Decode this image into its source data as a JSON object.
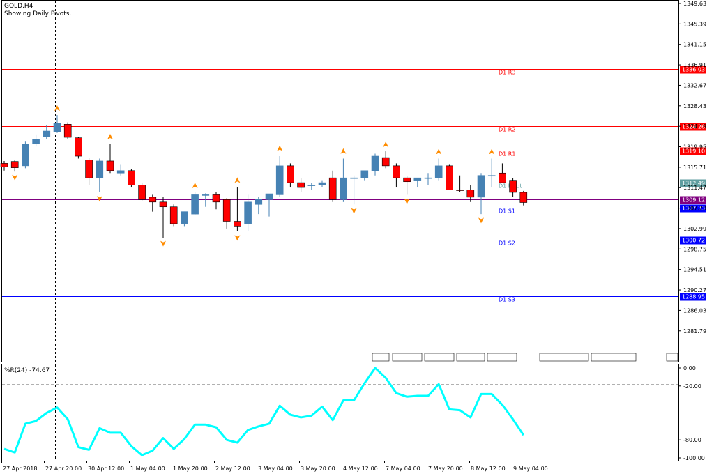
{
  "header": {
    "symbol": "GOLD,H4",
    "subtitle": "Showing Daily Pivots."
  },
  "indicator": {
    "label": "%R(24) -74.67"
  },
  "colors": {
    "bull": "#4682b4",
    "bear": "#ff0000",
    "resistance": "#ff0000",
    "support": "#0000ff",
    "pivot": "#5f9ea0",
    "current_price": "#800080",
    "wpr_line": "#00ffff",
    "arrow": "#ff8c00"
  },
  "chart_data": [
    {
      "type": "candlestick",
      "price_axis": {
        "min": 1279.3,
        "max": 1349.63,
        "ticks": [
          "1349.63",
          "1345.39",
          "1341.15",
          "1336.91",
          "1332.67",
          "1328.43",
          "1324.19",
          "1319.95",
          "1315.71",
          "1311.47",
          "1307.23",
          "1302.99",
          "1298.75",
          "1294.51",
          "1290.27",
          "1286.03",
          "1281.79"
        ]
      },
      "time_axis_labels": [
        "27 Apr 2018",
        "27 Apr 20:00",
        "30 Apr 12:00",
        "1 May 04:00",
        "1 May 20:00",
        "2 May 12:00",
        "3 May 04:00",
        "3 May 20:00",
        "4 May 12:00",
        "7 May 04:00",
        "7 May 20:00",
        "8 May 12:00",
        "9 May 04:00"
      ],
      "pivot_levels": [
        {
          "name": "D1 R3",
          "value": "1336.03",
          "kind": "resistance"
        },
        {
          "name": "D1 R2",
          "value": "1324.26",
          "kind": "resistance"
        },
        {
          "name": "D1 R1",
          "value": "1319.10",
          "kind": "resistance"
        },
        {
          "name": "D1 Pivot",
          "value": "1312.49",
          "kind": "pivot"
        },
        {
          "name": "",
          "value": "1309.12",
          "kind": "current_price"
        },
        {
          "name": "D1 S1",
          "value": "1307.33",
          "kind": "support"
        },
        {
          "name": "D1 S2",
          "value": "1300.72",
          "kind": "support"
        },
        {
          "name": "D1 S3",
          "value": "1288.95",
          "kind": "support"
        }
      ],
      "candles": [
        {
          "o": 1316.5,
          "h": 1317.0,
          "l": 1315.0,
          "c": 1315.8
        },
        {
          "o": 1316.9,
          "h": 1317.2,
          "l": 1314.8,
          "c": 1315.6
        },
        {
          "o": 1316.0,
          "h": 1321.0,
          "l": 1315.5,
          "c": 1320.5
        },
        {
          "o": 1320.5,
          "h": 1322.5,
          "l": 1320.0,
          "c": 1321.5
        },
        {
          "o": 1322.0,
          "h": 1324.5,
          "l": 1321.5,
          "c": 1323.2
        },
        {
          "o": 1323.0,
          "h": 1326.5,
          "l": 1322.8,
          "c": 1324.8
        },
        {
          "o": 1324.6,
          "h": 1325.0,
          "l": 1321.5,
          "c": 1321.9
        },
        {
          "o": 1321.8,
          "h": 1322.0,
          "l": 1317.5,
          "c": 1318.0
        },
        {
          "o": 1317.2,
          "h": 1317.6,
          "l": 1312.0,
          "c": 1313.5
        },
        {
          "o": 1313.5,
          "h": 1317.5,
          "l": 1310.5,
          "c": 1317.0
        },
        {
          "o": 1317.0,
          "h": 1320.5,
          "l": 1314.5,
          "c": 1315.0
        },
        {
          "o": 1314.5,
          "h": 1316.2,
          "l": 1314.0,
          "c": 1315.0
        },
        {
          "o": 1315.0,
          "h": 1315.3,
          "l": 1311.5,
          "c": 1312.0
        },
        {
          "o": 1312.0,
          "h": 1312.5,
          "l": 1308.8,
          "c": 1309.0
        },
        {
          "o": 1309.5,
          "h": 1310.0,
          "l": 1306.5,
          "c": 1308.5
        },
        {
          "o": 1308.5,
          "h": 1309.5,
          "l": 1301.0,
          "c": 1307.5
        },
        {
          "o": 1307.5,
          "h": 1308.0,
          "l": 1303.5,
          "c": 1304.0
        },
        {
          "o": 1304.0,
          "h": 1306.5,
          "l": 1303.5,
          "c": 1306.5
        },
        {
          "o": 1306.0,
          "h": 1310.5,
          "l": 1305.8,
          "c": 1310.0
        },
        {
          "o": 1310.0,
          "h": 1310.3,
          "l": 1307.5,
          "c": 1310.0
        },
        {
          "o": 1310.0,
          "h": 1310.5,
          "l": 1307.0,
          "c": 1308.5
        },
        {
          "o": 1309.0,
          "h": 1309.3,
          "l": 1303.0,
          "c": 1304.5
        },
        {
          "o": 1304.5,
          "h": 1311.5,
          "l": 1302.5,
          "c": 1303.5
        },
        {
          "o": 1304.0,
          "h": 1310.0,
          "l": 1302.5,
          "c": 1308.5
        },
        {
          "o": 1308.0,
          "h": 1309.5,
          "l": 1306.0,
          "c": 1309.0
        },
        {
          "o": 1309.0,
          "h": 1310.0,
          "l": 1305.5,
          "c": 1310.2
        },
        {
          "o": 1310.0,
          "h": 1318.0,
          "l": 1309.5,
          "c": 1316.0
        },
        {
          "o": 1316.0,
          "h": 1316.5,
          "l": 1311.5,
          "c": 1312.5
        },
        {
          "o": 1312.5,
          "h": 1313.5,
          "l": 1310.5,
          "c": 1311.5
        },
        {
          "o": 1312.0,
          "h": 1312.5,
          "l": 1311.0,
          "c": 1312.0
        },
        {
          "o": 1312.0,
          "h": 1313.0,
          "l": 1311.5,
          "c": 1312.5
        },
        {
          "o": 1313.5,
          "h": 1315.0,
          "l": 1308.5,
          "c": 1309.0
        },
        {
          "o": 1309.0,
          "h": 1317.5,
          "l": 1308.5,
          "c": 1313.5
        },
        {
          "o": 1313.5,
          "h": 1314.0,
          "l": 1308.0,
          "c": 1313.5
        },
        {
          "o": 1313.5,
          "h": 1315.0,
          "l": 1313.0,
          "c": 1315.0
        },
        {
          "o": 1315.0,
          "h": 1318.5,
          "l": 1314.0,
          "c": 1318.0
        },
        {
          "o": 1317.7,
          "h": 1319.0,
          "l": 1315.5,
          "c": 1316.0
        },
        {
          "o": 1316.0,
          "h": 1316.5,
          "l": 1311.5,
          "c": 1313.5
        },
        {
          "o": 1313.5,
          "h": 1313.8,
          "l": 1310.0,
          "c": 1312.7
        },
        {
          "o": 1313.0,
          "h": 1313.5,
          "l": 1311.5,
          "c": 1313.5
        },
        {
          "o": 1313.5,
          "h": 1314.5,
          "l": 1312.0,
          "c": 1313.5
        },
        {
          "o": 1313.5,
          "h": 1317.5,
          "l": 1313.0,
          "c": 1316.0
        },
        {
          "o": 1316.0,
          "h": 1316.2,
          "l": 1311.0,
          "c": 1311.0
        },
        {
          "o": 1311.0,
          "h": 1314.0,
          "l": 1310.5,
          "c": 1310.9
        },
        {
          "o": 1311.0,
          "h": 1312.0,
          "l": 1308.5,
          "c": 1309.5
        },
        {
          "o": 1309.5,
          "h": 1314.5,
          "l": 1306.0,
          "c": 1314.0
        },
        {
          "o": 1314.0,
          "h": 1317.5,
          "l": 1311.5,
          "c": 1314.0
        },
        {
          "o": 1314.5,
          "h": 1316.5,
          "l": 1312.5,
          "c": 1312.5
        },
        {
          "o": 1313.0,
          "h": 1313.5,
          "l": 1309.5,
          "c": 1310.5
        },
        {
          "o": 1310.5,
          "h": 1310.8,
          "l": 1307.8,
          "c": 1308.4
        }
      ],
      "fractals": [
        {
          "i": 1,
          "dir": "down",
          "price": 1313.7
        },
        {
          "i": 5,
          "dir": "up",
          "price": 1327.8
        },
        {
          "i": 9,
          "dir": "down",
          "price": 1309.3
        },
        {
          "i": 10,
          "dir": "up",
          "price": 1321.9
        },
        {
          "i": 15,
          "dir": "down",
          "price": 1300.0
        },
        {
          "i": 18,
          "dir": "up",
          "price": 1311.8
        },
        {
          "i": 22,
          "dir": "up",
          "price": 1312.9
        },
        {
          "i": 22,
          "dir": "down",
          "price": 1301.2
        },
        {
          "i": 26,
          "dir": "up",
          "price": 1319.5
        },
        {
          "i": 32,
          "dir": "up",
          "price": 1318.9
        },
        {
          "i": 33,
          "dir": "down",
          "price": 1306.8
        },
        {
          "i": 36,
          "dir": "up",
          "price": 1320.3
        },
        {
          "i": 38,
          "dir": "down",
          "price": 1308.8
        },
        {
          "i": 41,
          "dir": "up",
          "price": 1318.8
        },
        {
          "i": 45,
          "dir": "down",
          "price": 1304.8
        },
        {
          "i": 46,
          "dir": "up",
          "price": 1318.8
        }
      ]
    },
    {
      "type": "line",
      "name": "%R(24)",
      "y_axis": {
        "min": -100,
        "max": 0,
        "ticks": [
          "0.00",
          "-20.00",
          "-80.00",
          "-100.00"
        ]
      },
      "values": [
        -90,
        -94,
        -62,
        -59,
        -50,
        -44,
        -57,
        -88,
        -91,
        -67,
        -72,
        -72,
        -87,
        -97,
        -92,
        -78,
        -90,
        -79,
        -63,
        -63,
        -66,
        -80,
        -83,
        -69,
        -65,
        -62,
        -42,
        -52,
        -55,
        -53,
        -43,
        -58,
        -36,
        -36,
        -17,
        0,
        -11,
        -28,
        -32,
        -31,
        -31,
        -18,
        -46,
        -47,
        -55,
        -29,
        -29,
        -41,
        -57,
        -74.67
      ]
    }
  ]
}
